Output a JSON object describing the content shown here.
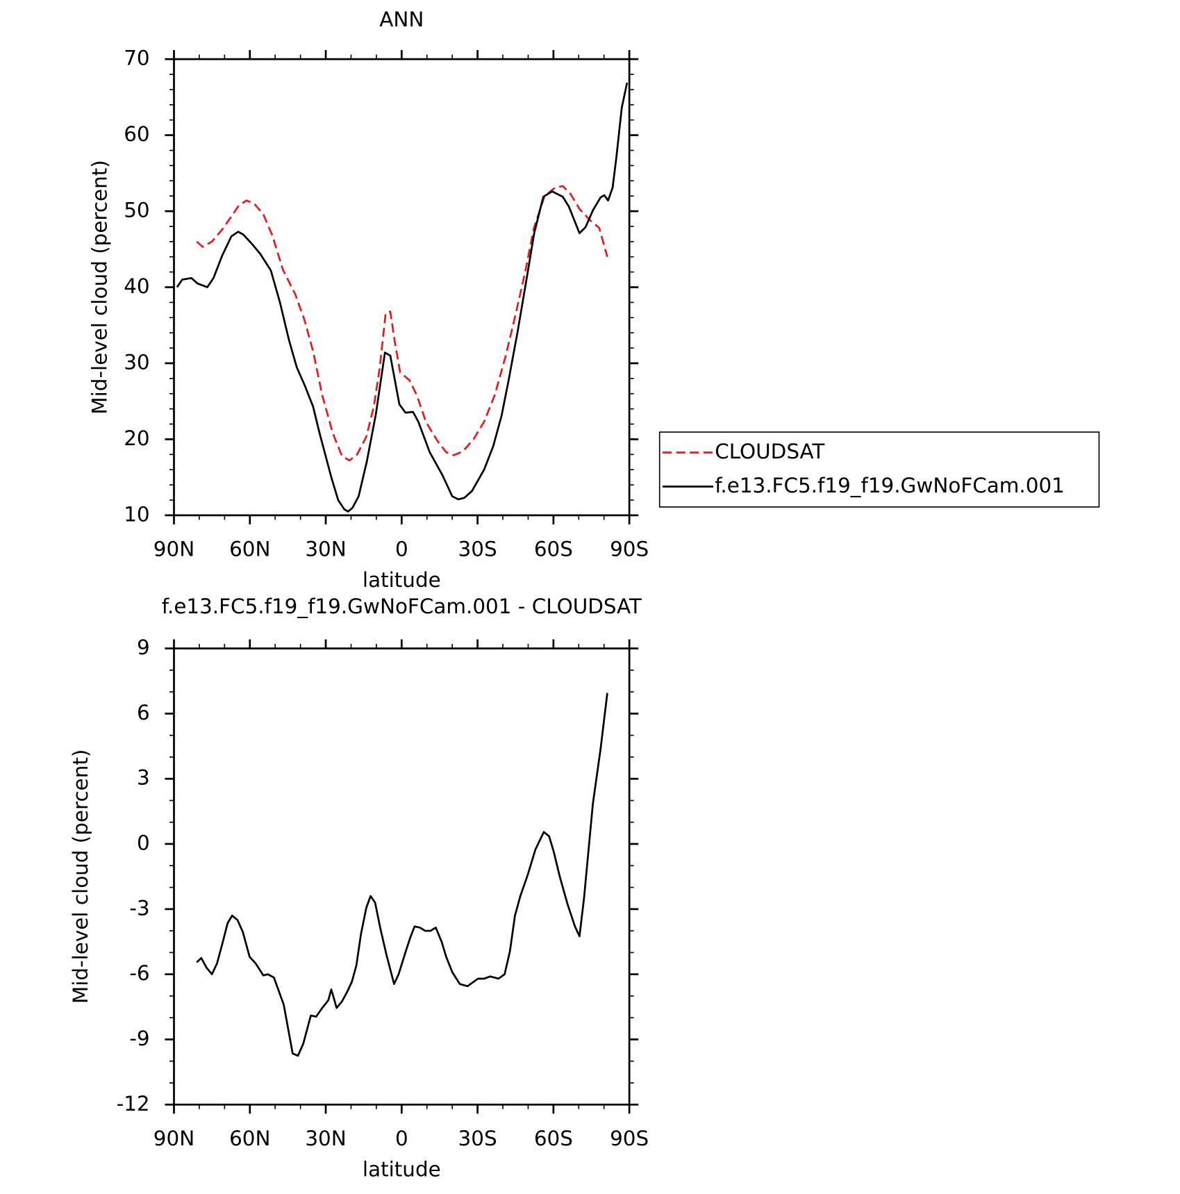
{
  "chart_data": [
    {
      "type": "line",
      "title": "ANN",
      "xlabel": "latitude",
      "ylabel": "Mid-level cloud (percent)",
      "xlim": [
        90,
        -90
      ],
      "ylim": [
        10,
        70
      ],
      "xticks": [
        {
          "value": 90,
          "label": "90N"
        },
        {
          "value": 60,
          "label": "60N"
        },
        {
          "value": 30,
          "label": "30N"
        },
        0,
        {
          "value": -30,
          "label": "30S"
        },
        {
          "value": -60,
          "label": "60S"
        },
        {
          "value": -90,
          "label": "90S"
        }
      ],
      "yticks": [
        10,
        20,
        30,
        40,
        50,
        60,
        70
      ],
      "legend": "right",
      "series": [
        {
          "name": "CLOUDSAT",
          "color": "#e8191d",
          "dash": true,
          "x": [
            81.0,
            78.6,
            75.0,
            70.9,
            67.3,
            64.3,
            61.3,
            58.3,
            54.7,
            51.1,
            46.9,
            42.1,
            38.5,
            35.0,
            31.4,
            27.2,
            23.6,
            20.6,
            17.6,
            14.0,
            11.0,
            8.7,
            6.3,
            4.5,
            2.7,
            0.6,
            -3.0,
            -6.0,
            -9.6,
            -14.1,
            -17.6,
            -20.6,
            -24.2,
            -28.4,
            -32.6,
            -36.8,
            -41.0,
            -44.6,
            -48.7,
            -52.3,
            -56.5,
            -60.7,
            -63.7,
            -66.7,
            -70.3,
            -74.5,
            -78.1,
            -81.3
          ],
          "values": [
            46,
            45.3,
            46,
            47.6,
            49.3,
            50.8,
            51.4,
            51,
            49.6,
            46.8,
            42.3,
            39.1,
            35.8,
            31.6,
            25.8,
            20.8,
            17.8,
            17.2,
            18,
            20.3,
            24.3,
            29.3,
            36.6,
            36.8,
            32.8,
            28.8,
            27.8,
            25.8,
            22.3,
            19.8,
            18.3,
            17.9,
            18.4,
            20,
            22.3,
            25.8,
            30.8,
            35.8,
            41.8,
            47.8,
            52,
            53.1,
            53.3,
            52.3,
            50.3,
            48.8,
            47.8,
            44
          ]
        },
        {
          "name": "f.e13.FC5.f19_f19.GwNoFCam.001",
          "color": "#000000",
          "dash": false,
          "x": [
            88.8,
            86.7,
            83.1,
            80.7,
            76.8,
            74.4,
            70.9,
            67.3,
            64.6,
            62.5,
            59.2,
            55.9,
            51.7,
            48.1,
            44.5,
            41.5,
            38.2,
            35.0,
            32.6,
            27.8,
            25.1,
            22.7,
            21.2,
            19.4,
            17.0,
            13.8,
            10.2,
            6.6,
            4.5,
            0.9,
            -1.5,
            -4.5,
            -6.6,
            -11.1,
            -16.1,
            -20.0,
            -22.4,
            -24.8,
            -27.8,
            -32.6,
            -36.2,
            -39.5,
            -42.2,
            -45.8,
            -49.4,
            -52.4,
            -56.0,
            -59.5,
            -63.7,
            -66.1,
            -70.3,
            -72.7,
            -75.6,
            -78.6,
            -80.1,
            -81.6,
            -83.4,
            -84.9,
            -87.0,
            -89.1
          ],
          "values": [
            40,
            41,
            41.2,
            40.5,
            40,
            41.2,
            44.2,
            46.7,
            47.3,
            46.9,
            45.7,
            44.4,
            42.2,
            38,
            33,
            29.5,
            27,
            24.3,
            21,
            15,
            12,
            10.8,
            10.5,
            11,
            12.5,
            17,
            23.3,
            31.4,
            31,
            24.6,
            23.5,
            23.6,
            22.3,
            18.3,
            15.3,
            12.5,
            12.1,
            12.3,
            13.2,
            16,
            19.1,
            23.1,
            27.6,
            34.1,
            41.1,
            47.1,
            51.9,
            52.6,
            51.9,
            50.6,
            47.1,
            47.9,
            50.1,
            51.8,
            52.1,
            51.4,
            53.1,
            57.1,
            63.6,
            66.9
          ]
        }
      ]
    },
    {
      "type": "line",
      "title": "f.e13.FC5.f19_f19.GwNoFCam.001 - CLOUDSAT",
      "xlabel": "latitude",
      "ylabel": "Mid-level cloud (percent)",
      "xlim": [
        90,
        -90
      ],
      "ylim": [
        -12,
        9
      ],
      "xticks": [
        {
          "value": 90,
          "label": "90N"
        },
        {
          "value": 60,
          "label": "60N"
        },
        {
          "value": 30,
          "label": "30N"
        },
        0,
        {
          "value": -30,
          "label": "30S"
        },
        {
          "value": -60,
          "label": "60S"
        },
        {
          "value": -90,
          "label": "90S"
        }
      ],
      "yticks": [
        -12,
        -9,
        -6,
        -3,
        0,
        3,
        6,
        9
      ],
      "series": [
        {
          "color": "#000000",
          "dash": false,
          "x": [
            81.0,
            79.2,
            77.1,
            75.0,
            73.0,
            70.9,
            68.8,
            67.0,
            64.9,
            62.8,
            60.1,
            57.7,
            54.7,
            52.9,
            50.5,
            46.6,
            43.1,
            41.0,
            38.9,
            35.9,
            33.8,
            31.4,
            29.0,
            27.8,
            25.7,
            23.6,
            21.5,
            19.7,
            17.9,
            16.1,
            14.0,
            12.3,
            10.5,
            8.4,
            6.0,
            3.0,
            1.2,
            -1.2,
            -3.3,
            -5.1,
            -7.2,
            -9.3,
            -11.4,
            -13.5,
            -15.8,
            -17.6,
            -20.0,
            -23.0,
            -26.0,
            -30.2,
            -32.6,
            -35.0,
            -38.3,
            -40.7,
            -42.8,
            -44.8,
            -46.9,
            -49.9,
            -52.9,
            -56.2,
            -58.3,
            -60.1,
            -62.5,
            -65.5,
            -68.5,
            -70.3,
            -72.1,
            -75.6,
            -78.6,
            -81.3
          ],
          "values": [
            -5.45,
            -5.25,
            -5.7,
            -6.0,
            -5.5,
            -4.6,
            -3.65,
            -3.3,
            -3.5,
            -4.05,
            -5.2,
            -5.5,
            -6.05,
            -6.0,
            -6.15,
            -7.4,
            -9.65,
            -9.75,
            -9.2,
            -7.9,
            -7.95,
            -7.55,
            -7.2,
            -6.7,
            -7.55,
            -7.25,
            -6.8,
            -6.35,
            -5.6,
            -4.15,
            -2.95,
            -2.4,
            -2.7,
            -3.9,
            -5.1,
            -6.45,
            -6.0,
            -5.1,
            -4.35,
            -3.8,
            -3.85,
            -4.0,
            -4.0,
            -3.85,
            -4.5,
            -5.2,
            -5.9,
            -6.45,
            -6.55,
            -6.2,
            -6.2,
            -6.1,
            -6.2,
            -6.0,
            -4.95,
            -3.3,
            -2.4,
            -1.4,
            -0.25,
            0.55,
            0.35,
            -0.35,
            -1.5,
            -2.75,
            -3.8,
            -4.25,
            -2.5,
            1.85,
            4.35,
            6.95
          ]
        }
      ]
    }
  ]
}
